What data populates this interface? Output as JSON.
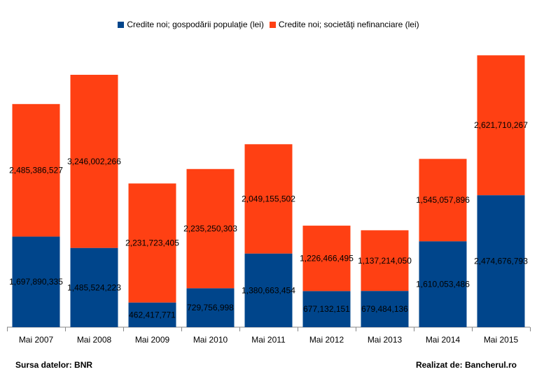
{
  "chart_data": {
    "type": "bar",
    "stacked": true,
    "categories": [
      "Mai 2007",
      "Mai 2008",
      "Mai 2009",
      "Mai 2010",
      "Mai 2011",
      "Mai 2012",
      "Mai 2013",
      "Mai 2014",
      "Mai 2015"
    ],
    "series": [
      {
        "name": "Credite noi; gospodării populaţie (lei)",
        "color": "#00458B",
        "values": [
          1697890335,
          1485524223,
          462417771,
          729756998,
          1380663454,
          677132151,
          679484136,
          1610053486,
          2474676793
        ],
        "labels": [
          "1,697,890,335",
          "1,485,524,223",
          "462,417,771",
          "729,756,998",
          "1,380,663,454",
          "677,132,151",
          "679,484,136",
          "1,610,053,486",
          "2,474,676,793"
        ]
      },
      {
        "name": "Credite noi; societăţi nefinanciare (lei)",
        "color": "#FF4013",
        "values": [
          2485386527,
          3246002266,
          2231723405,
          2235250303,
          2049155502,
          1226466495,
          1137214050,
          1545057896,
          2621710267
        ],
        "labels": [
          "2,485,386,527",
          "3,246,002,266",
          "2,231,723,405",
          "2,235,250,303",
          "2,049,155,502",
          "1,226,466,495",
          "1,137,214,050",
          "1,545,057,896",
          "2,621,710,267"
        ]
      }
    ],
    "legend_position": "top",
    "grid": false,
    "ylim": [
      0,
      5200000000
    ]
  },
  "footer": {
    "source": "Sursa datelor: BNR",
    "credit": "Realizat de: Bancherul.ro"
  }
}
